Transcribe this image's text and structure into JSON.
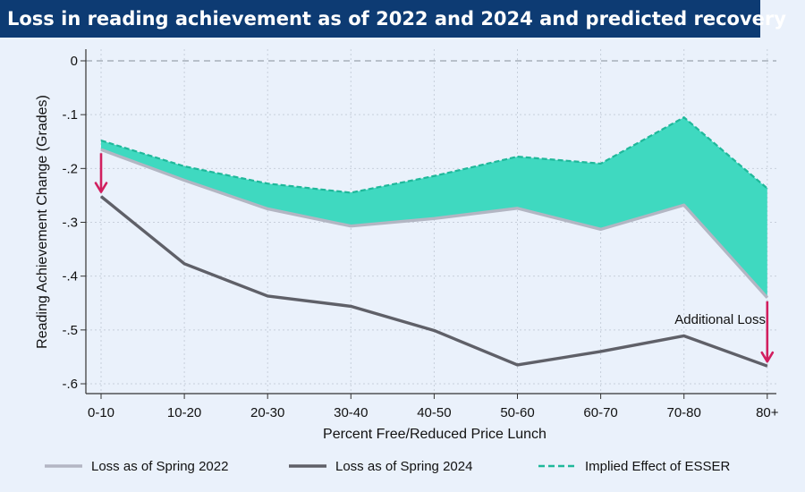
{
  "title": "Loss in reading achievement as of 2022 and 2024 and predicted recovery",
  "chart_data": {
    "type": "line",
    "categories": [
      "0-10",
      "10-20",
      "20-30",
      "30-40",
      "40-50",
      "50-60",
      "60-70",
      "70-80",
      "80+"
    ],
    "xlabel": "Percent Free/Reduced Price Lunch",
    "ylabel": "Reading Achievement Change (Grades)",
    "ylim": [
      -0.62,
      0.01
    ],
    "yticks": [
      0,
      -0.1,
      -0.2,
      -0.3,
      -0.4,
      -0.5,
      -0.6
    ],
    "ytick_labels": [
      "0",
      "-.1",
      "-.2",
      "-.3",
      "-.4",
      "-.5",
      "-.6"
    ],
    "grid": true,
    "series": [
      {
        "name": "Loss as of Spring 2022",
        "values": [
          -0.165,
          -0.222,
          -0.275,
          -0.307,
          -0.293,
          -0.274,
          -0.313,
          -0.268,
          -0.44
        ],
        "color": "#b3b6c3",
        "dash": false
      },
      {
        "name": "Loss as of Spring 2024",
        "values": [
          -0.252,
          -0.377,
          -0.437,
          -0.456,
          -0.501,
          -0.565,
          -0.54,
          -0.511,
          -0.567
        ],
        "color": "#5f6068",
        "dash": false
      },
      {
        "name": "Implied Effect of ESSER",
        "values": [
          -0.148,
          -0.196,
          -0.228,
          -0.245,
          -0.214,
          -0.178,
          -0.191,
          -0.105,
          -0.237
        ],
        "color": "#1fb89a",
        "dash": true
      }
    ],
    "fill_color": "#3fd9c0",
    "arrow_color": "#d11f5f",
    "annotations": [
      {
        "text": "Additional Loss"
      }
    ],
    "legend_position": "bottom"
  }
}
